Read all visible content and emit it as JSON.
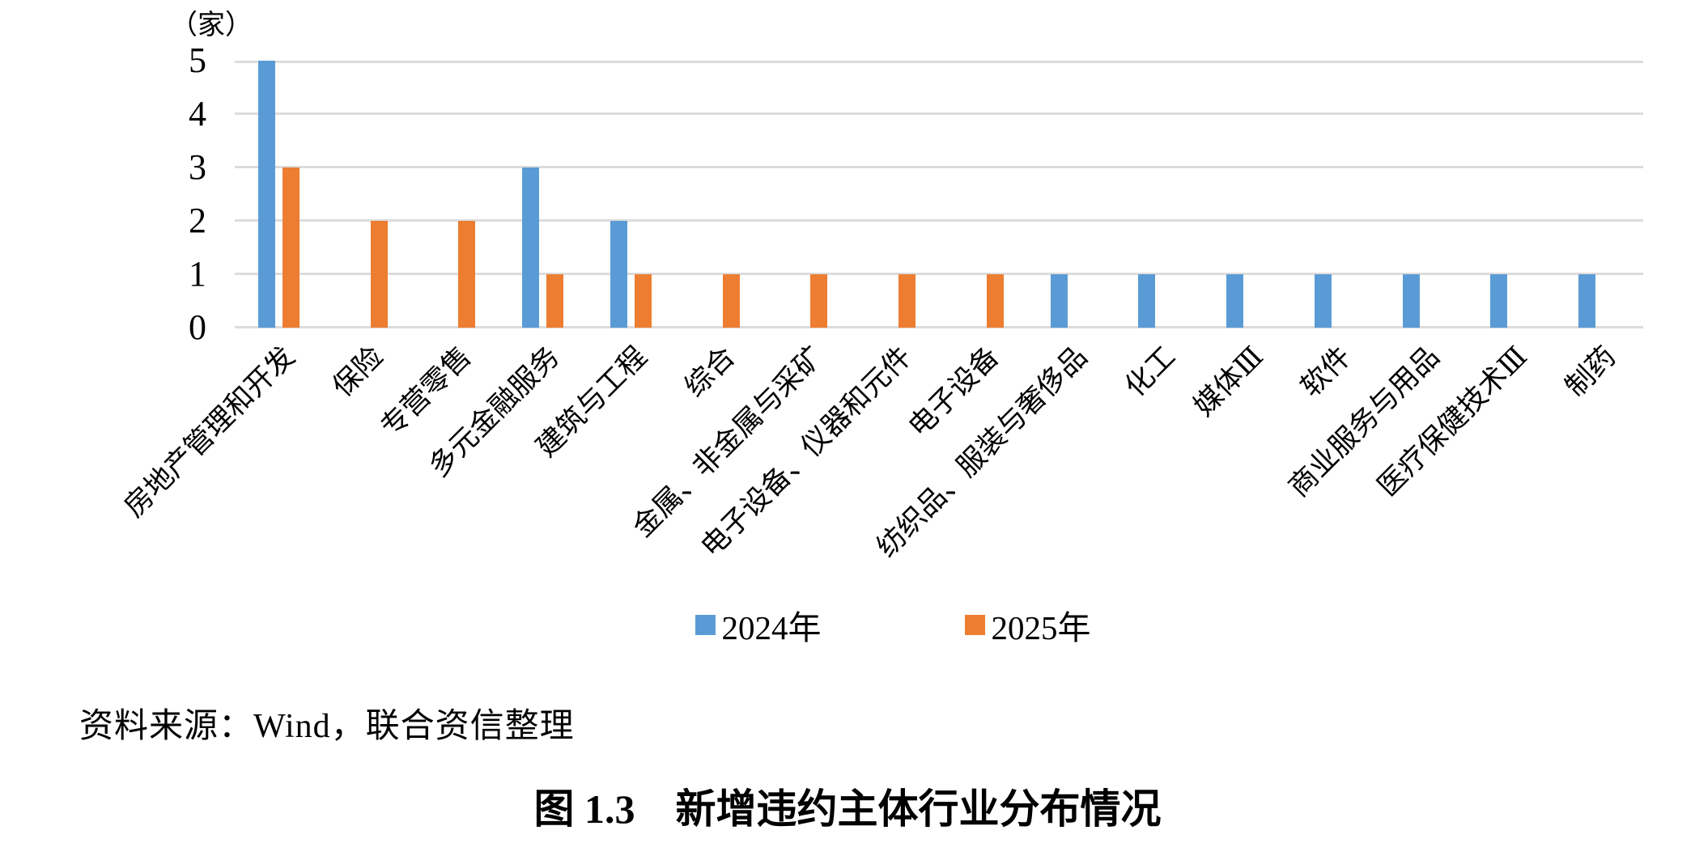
{
  "chart_data": {
    "type": "bar",
    "title": "图 1.3　新增违约主体行业分布情况",
    "unit_label": "（家）",
    "categories": [
      "房地产管理和开发",
      "保险",
      "专营零售",
      "多元金融服务",
      "建筑与工程",
      "综合",
      "金属、非金属与采矿",
      "电子设备、仪器和元件",
      "电子设备",
      "纺织品、服装与奢侈品",
      "化工",
      "媒体Ⅲ",
      "软件",
      "商业服务与用品",
      "医疗保健技术Ⅲ",
      "制药"
    ],
    "series": [
      {
        "name": "2024年",
        "color": "#5B9BD5",
        "values": [
          5,
          0,
          0,
          3,
          2,
          0,
          0,
          0,
          0,
          1,
          1,
          1,
          1,
          1,
          1,
          1
        ]
      },
      {
        "name": "2025年",
        "color": "#ED7D31",
        "values": [
          3,
          2,
          2,
          1,
          1,
          1,
          1,
          1,
          1,
          0,
          0,
          0,
          0,
          0,
          0,
          0
        ]
      }
    ],
    "y_ticks": [
      0,
      1,
      2,
      3,
      4,
      5
    ],
    "ylim": [
      0,
      5
    ],
    "grid": "horizontal",
    "gridline_color": "#dcdcdc",
    "x_label_rotation_deg": 45,
    "legend_position": "bottom-center"
  },
  "source_note": "资料来源：Wind，联合资信整理",
  "caption": "图 1.3　新增违约主体行业分布情况"
}
